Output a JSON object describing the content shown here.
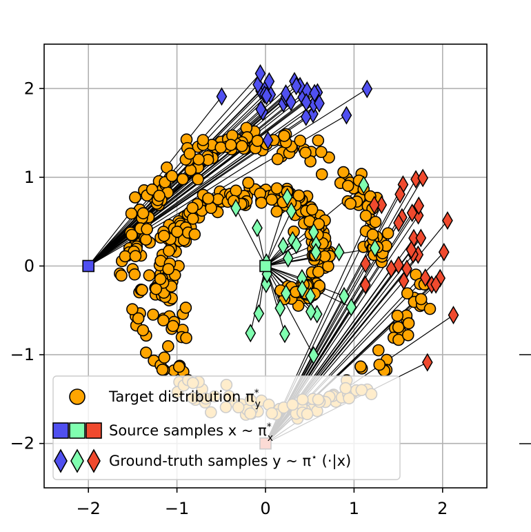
{
  "chart_data": {
    "type": "scatter",
    "xlim": [
      -2.5,
      2.5
    ],
    "ylim": [
      -2.5,
      2.5
    ],
    "xticks": [
      -2,
      -1,
      0,
      1,
      2
    ],
    "yticks": [
      -2,
      -1,
      0,
      1,
      2
    ],
    "xtick_labels": [
      "−2",
      "−1",
      "0",
      "1",
      "2"
    ],
    "ytick_labels": [
      "−2",
      "−1",
      "0",
      "1",
      "2"
    ],
    "grid": true,
    "legend_placement": "lower-left",
    "legend": [
      {
        "label": "Target distribution π",
        "sup": "*",
        "sub": "y",
        "marker": "circle"
      },
      {
        "label": "Source samples x ~ π",
        "sup": "*",
        "sub": "x",
        "marker": "squares"
      },
      {
        "label": "Ground-truth samples y ~ π",
        "sup": "⋆",
        "tail": " (·|x)",
        "marker": "diamonds"
      }
    ],
    "colors": {
      "target": "#ffa500",
      "source_blue": "#5050f0",
      "source_green": "#80ffb0",
      "source_red": "#f04a2e",
      "edge": "#000000",
      "grid": "#b0b0b0"
    },
    "sources": [
      {
        "name": "blue",
        "x": -2,
        "y": 0,
        "target_center": [
          0.2,
          1.9
        ],
        "spread": [
          0.3,
          0.12
        ]
      },
      {
        "name": "green",
        "x": 0,
        "y": 0,
        "target_center": [
          0.3,
          0.0
        ],
        "spread": [
          0.4,
          0.45
        ]
      },
      {
        "name": "red",
        "x": 0,
        "y": -2,
        "target_center": [
          1.65,
          0.0
        ],
        "spread": [
          0.25,
          0.6
        ]
      }
    ],
    "target_spiral": {
      "inner_radius": 1.2,
      "outer_radius": 1.85,
      "points": 520
    }
  }
}
